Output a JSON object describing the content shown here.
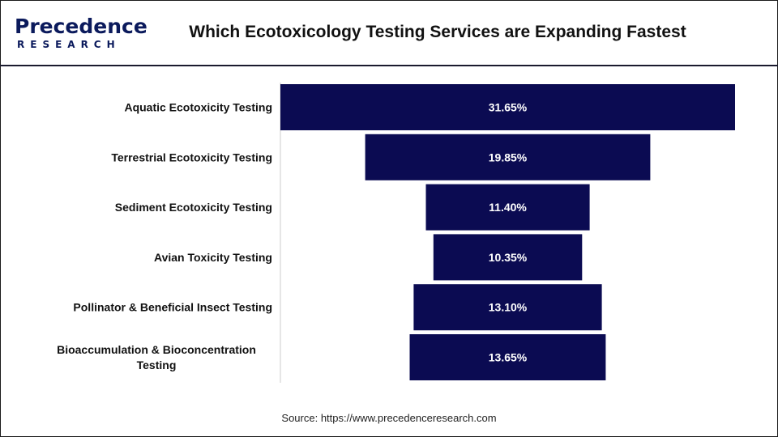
{
  "logo": {
    "word": "Precedence",
    "sub": "RESEARCH"
  },
  "title": "Which Ecotoxicology Testing Services are Expanding Fastest",
  "source": "Source: https://www.precedenceresearch.com",
  "colors": {
    "bar": "#0b0b52",
    "bar_text": "#ffffff",
    "axis": "#cccccc"
  },
  "chart_data": {
    "type": "bar",
    "orientation": "horizontal-funnel",
    "categories": [
      "Aquatic Ecotoxicity Testing",
      "Terrestrial Ecotoxicity Testing",
      "Sediment Ecotoxicity Testing",
      "Avian Toxicity Testing",
      "Pollinator & Beneficial Insect Testing",
      "Bioaccumulation & Bioconcentration Testing"
    ],
    "values": [
      31.65,
      19.85,
      11.4,
      10.35,
      13.1,
      13.65
    ],
    "data_labels": [
      "31.65%",
      "19.85%",
      "11.40%",
      "10.35%",
      "13.10%",
      "13.65%"
    ],
    "unit": "%"
  }
}
